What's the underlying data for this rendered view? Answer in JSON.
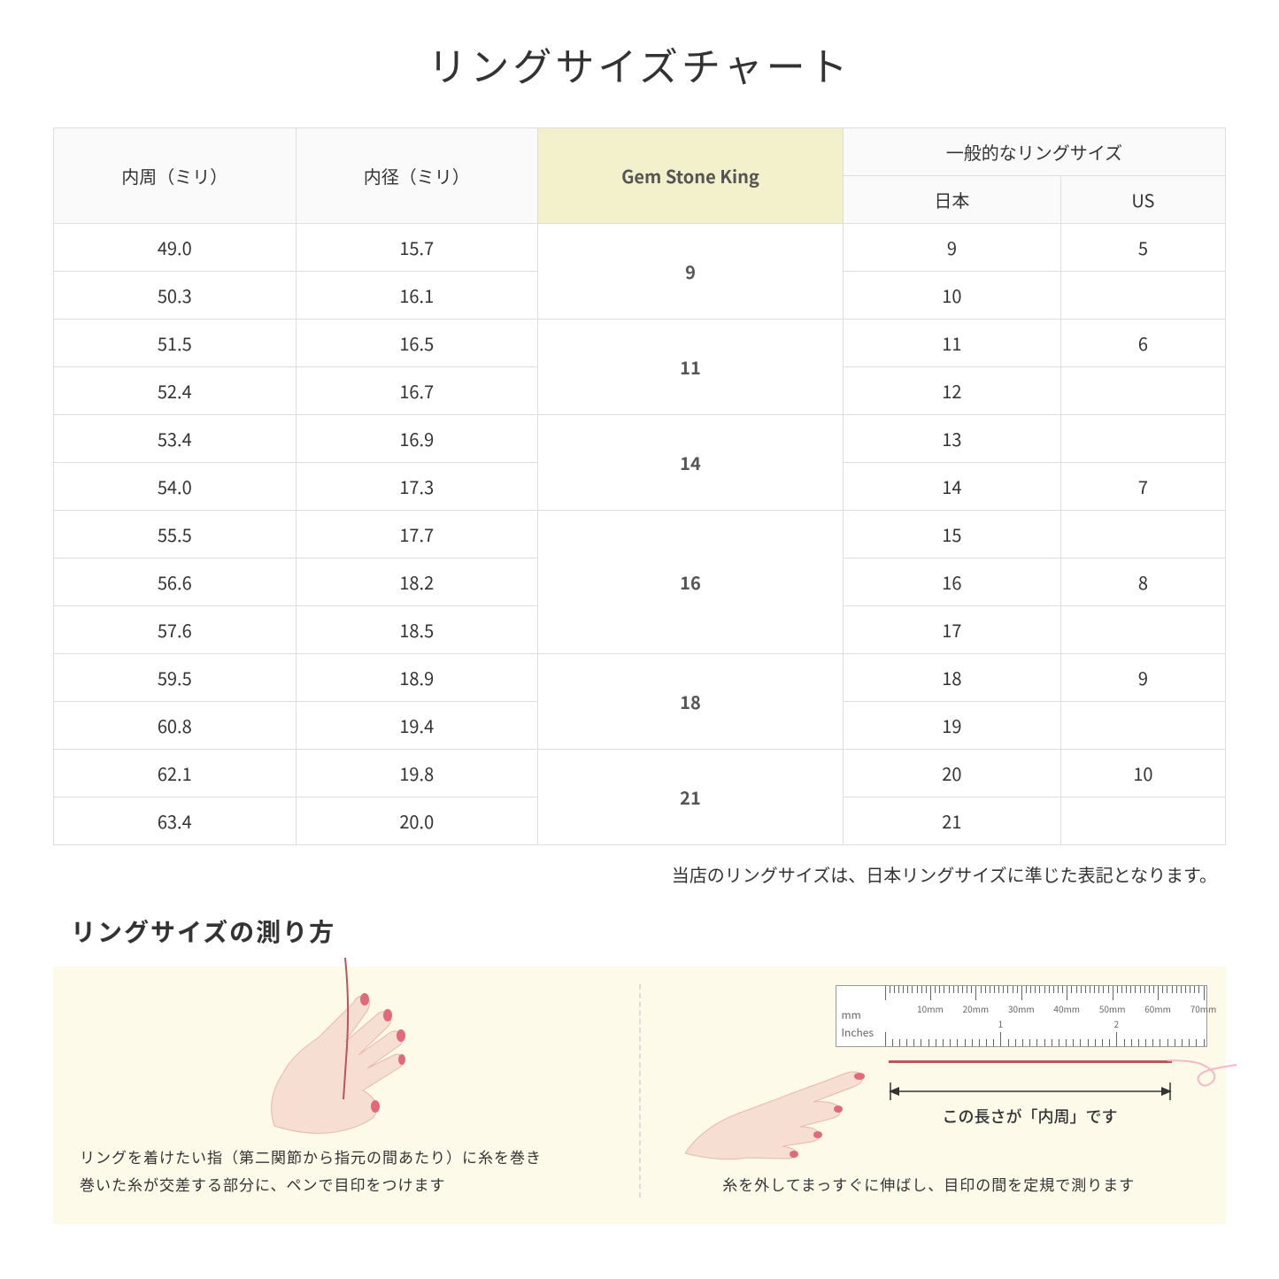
{
  "title": "リングサイズチャート",
  "table": {
    "header_col1": "内周（ミリ）",
    "header_col2": "内径（ミリ）",
    "header_col3": "Gem Stone King",
    "header_col4_group": "一般的なリングサイズ",
    "header_col4a": "日本",
    "header_col4b": "US",
    "groups": [
      {
        "gsk": "9",
        "rows": [
          {
            "c": "49.0",
            "d": "15.7",
            "jp": "9",
            "us": "5"
          },
          {
            "c": "50.3",
            "d": "16.1",
            "jp": "10",
            "us": ""
          }
        ]
      },
      {
        "gsk": "11",
        "rows": [
          {
            "c": "51.5",
            "d": "16.5",
            "jp": "11",
            "us": "6"
          },
          {
            "c": "52.4",
            "d": "16.7",
            "jp": "12",
            "us": ""
          }
        ]
      },
      {
        "gsk": "14",
        "rows": [
          {
            "c": "53.4",
            "d": "16.9",
            "jp": "13",
            "us": ""
          },
          {
            "c": "54.0",
            "d": "17.3",
            "jp": "14",
            "us": "7"
          }
        ]
      },
      {
        "gsk": "16",
        "rows": [
          {
            "c": "55.5",
            "d": "17.7",
            "jp": "15",
            "us": ""
          },
          {
            "c": "56.6",
            "d": "18.2",
            "jp": "16",
            "us": "8"
          },
          {
            "c": "57.6",
            "d": "18.5",
            "jp": "17",
            "us": ""
          }
        ]
      },
      {
        "gsk": "18",
        "rows": [
          {
            "c": "59.5",
            "d": "18.9",
            "jp": "18",
            "us": "9"
          },
          {
            "c": "60.8",
            "d": "19.4",
            "jp": "19",
            "us": ""
          }
        ]
      },
      {
        "gsk": "21",
        "rows": [
          {
            "c": "62.1",
            "d": "19.8",
            "jp": "20",
            "us": "10"
          },
          {
            "c": "63.4",
            "d": "20.0",
            "jp": "21",
            "us": ""
          }
        ]
      }
    ],
    "colors": {
      "highlight_bg": "#f3f1cb",
      "header_bg": "#fafafa",
      "border": "#dddddd"
    }
  },
  "note": "当店のリングサイズは、日本リングサイズに準じた表記となります。",
  "subtitle": "リングサイズの測り方",
  "instructions": {
    "left_text": "リングを着けたい指（第二関節から指元の間あたり）に糸を巻き\n巻いた糸が交差する部分に、ペンで目印をつけます",
    "right_text": "糸を外してまっすぐに伸ばし、目印の間を定規で測ります",
    "arrow_label": "この長さが「内周」です",
    "ruler": {
      "mm_label": "mm",
      "in_label": "Inches",
      "mm_major_labels": [
        "10mm",
        "20mm",
        "30mm",
        "40mm",
        "50mm",
        "60mm",
        "70mm"
      ],
      "in_major_labels": [
        "1",
        "2"
      ]
    },
    "colors": {
      "panel_bg": "#fdfaea",
      "hand_fill": "#f7ded3",
      "hand_stroke": "#e8b8a8",
      "nail": "#e16a7a",
      "thread": "#b8555e",
      "curl": "#f4b8c8"
    }
  }
}
